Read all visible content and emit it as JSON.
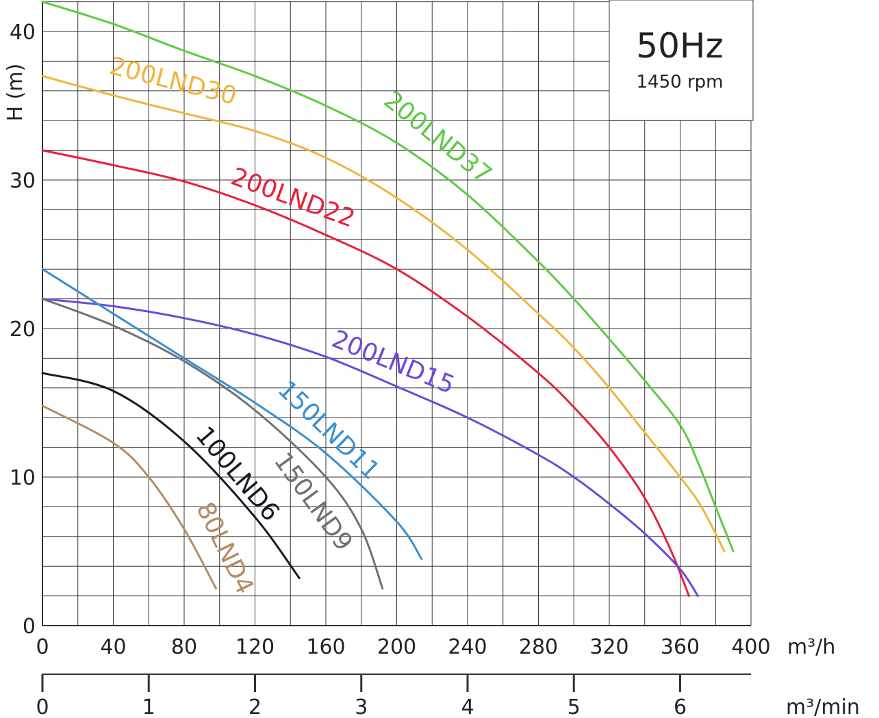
{
  "chart_data": {
    "type": "line",
    "title": "50Hz",
    "subtitle": "1450 rpm",
    "ylabel": "H (m)",
    "xlabel": "m³/h",
    "x2label": "m³/min",
    "xlim": [
      0,
      400
    ],
    "ylim": [
      0,
      42
    ],
    "xticks": [
      "0",
      "40",
      "80",
      "120",
      "160",
      "200",
      "240",
      "280",
      "320",
      "360",
      "400"
    ],
    "yticks": [
      "0",
      "10",
      "20",
      "30",
      "40"
    ],
    "x2ticks": [
      "0",
      "1",
      "2",
      "3",
      "4",
      "5",
      "6"
    ],
    "grid": true,
    "series": [
      {
        "name": "200LND37",
        "color": "#5ecb45",
        "x": [
          0,
          40,
          80,
          120,
          160,
          200,
          240,
          280,
          300,
          320,
          340,
          360,
          370,
          380,
          390
        ],
        "y": [
          42,
          40.5,
          38.7,
          37,
          35,
          32.5,
          29,
          24.5,
          22,
          19.3,
          16.5,
          13.5,
          11,
          8,
          5
        ]
      },
      {
        "name": "200LND30",
        "color": "#f0b53c",
        "x": [
          0,
          40,
          80,
          120,
          160,
          200,
          240,
          280,
          300,
          320,
          340,
          360,
          372,
          385
        ],
        "y": [
          37,
          35.7,
          34.5,
          33.3,
          31.5,
          28.8,
          25.3,
          21,
          18.7,
          16,
          13,
          10,
          8,
          5
        ]
      },
      {
        "name": "200LND22",
        "color": "#e8213c",
        "x": [
          0,
          40,
          80,
          120,
          160,
          200,
          240,
          280,
          300,
          320,
          340,
          355,
          365
        ],
        "y": [
          32,
          31,
          29.9,
          28.3,
          26.3,
          24,
          20.8,
          17,
          14.7,
          12,
          8.6,
          5,
          2
        ]
      },
      {
        "name": "200LND15",
        "color": "#6e49d6",
        "x": [
          0,
          40,
          80,
          120,
          160,
          200,
          240,
          280,
          300,
          320,
          340,
          360,
          370
        ],
        "y": [
          22,
          21.5,
          20.7,
          19.6,
          18.1,
          16.1,
          14,
          11.5,
          10,
          8.2,
          6.2,
          3.8,
          2
        ]
      },
      {
        "name": "150LND11",
        "color": "#3a8fd0",
        "x": [
          0,
          40,
          80,
          120,
          160,
          200,
          214
        ],
        "y": [
          24,
          21,
          18,
          15,
          11.6,
          7,
          4.5
        ]
      },
      {
        "name": "150LND9",
        "color": "#6e7177",
        "x": [
          0,
          40,
          80,
          120,
          160,
          180,
          192
        ],
        "y": [
          22,
          20.2,
          17.8,
          14.5,
          10,
          6.5,
          2.5
        ]
      },
      {
        "name": "100LND6",
        "color": "#141a24",
        "x": [
          0,
          40,
          80,
          120,
          145
        ],
        "y": [
          17,
          15.8,
          12.4,
          7.3,
          3.2
        ]
      },
      {
        "name": "80LND4",
        "color": "#b48c64",
        "x": [
          0,
          40,
          60,
          80,
          98
        ],
        "y": [
          14.8,
          12.3,
          10,
          6.5,
          2.5
        ]
      }
    ]
  }
}
